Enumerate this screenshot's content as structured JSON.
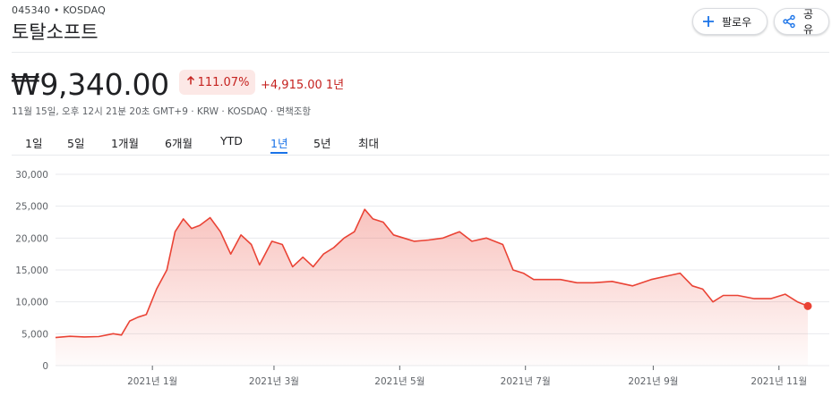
{
  "header": {
    "ticker": "045340 • KOSDAQ",
    "name": "토탈소프트",
    "follow_label": "팔로우",
    "share_label": "공유"
  },
  "quote": {
    "price": "₩9,340.00",
    "change_pct": "111.07%",
    "change_abs": "+4,915.00 1년",
    "meta": "11월 15일, 오후 12시 21분 20초 GMT+9 · KRW · KOSDAQ · 면책조항"
  },
  "ranges": [
    "1일",
    "5일",
    "1개월",
    "6개월",
    "YTD",
    "1년",
    "5년",
    "최대"
  ],
  "active_range": "1년",
  "colors": {
    "line": "#ea4335",
    "chip_bg": "#fce8e6",
    "down_text": "#c5221f",
    "active_tab": "#1a73e8"
  },
  "icons": {
    "follow": "plus-icon",
    "share": "share-icon",
    "chip": "arrow-up-icon"
  },
  "chart_data": {
    "type": "area",
    "ylim": [
      0,
      30000
    ],
    "y_ticks": [
      "0",
      "5,000",
      "10,000",
      "15,000",
      "20,000",
      "25,000",
      "30,000"
    ],
    "x_ticks": [
      {
        "label": "2021년 1월",
        "date": "2021-01-01"
      },
      {
        "label": "2021년 3월",
        "date": "2021-03-01"
      },
      {
        "label": "2021년 5월",
        "date": "2021-05-01"
      },
      {
        "label": "2021년 7월",
        "date": "2021-07-01"
      },
      {
        "label": "2021년 9월",
        "date": "2021-09-01"
      },
      {
        "label": "2021년 11월",
        "date": "2021-11-01"
      }
    ],
    "x_range": [
      "2020-11-15",
      "2021-11-15"
    ],
    "series": [
      {
        "x": [
          "2020-11-15",
          "2020-11-22",
          "2020-11-29",
          "2020-12-06",
          "2020-12-13",
          "2020-12-17",
          "2020-12-21",
          "2020-12-25",
          "2020-12-29",
          "2021-01-03",
          "2021-01-08",
          "2021-01-12",
          "2021-01-16",
          "2021-01-20",
          "2021-01-24",
          "2021-01-29",
          "2021-02-03",
          "2021-02-08",
          "2021-02-13",
          "2021-02-18",
          "2021-02-22",
          "2021-02-28",
          "2021-03-05",
          "2021-03-10",
          "2021-03-15",
          "2021-03-20",
          "2021-03-25",
          "2021-03-30",
          "2021-04-04",
          "2021-04-09",
          "2021-04-14",
          "2021-04-18",
          "2021-04-23",
          "2021-04-28",
          "2021-05-03",
          "2021-05-08",
          "2021-05-15",
          "2021-05-22",
          "2021-05-30",
          "2021-06-05",
          "2021-06-12",
          "2021-06-20",
          "2021-06-25",
          "2021-06-30",
          "2021-07-05",
          "2021-07-10",
          "2021-07-18",
          "2021-07-26",
          "2021-08-03",
          "2021-08-12",
          "2021-08-22",
          "2021-08-31",
          "2021-09-07",
          "2021-09-14",
          "2021-09-20",
          "2021-09-25",
          "2021-09-30",
          "2021-10-05",
          "2021-10-12",
          "2021-10-20",
          "2021-10-28",
          "2021-11-04",
          "2021-11-10",
          "2021-11-15"
        ],
        "values": [
          4400,
          4600,
          4500,
          4550,
          5000,
          4800,
          7000,
          7600,
          8000,
          12000,
          15000,
          21000,
          23000,
          21500,
          22000,
          23200,
          21000,
          17500,
          20500,
          19000,
          15800,
          19500,
          19000,
          15500,
          17000,
          15500,
          17500,
          18500,
          20000,
          21000,
          24500,
          23000,
          22500,
          20500,
          20000,
          19500,
          19700,
          20000,
          21000,
          19500,
          20000,
          19000,
          15000,
          14500,
          13500,
          13500,
          13500,
          13000,
          13000,
          13200,
          12500,
          13500,
          14000,
          14500,
          12500,
          12000,
          10000,
          11000,
          11000,
          10500,
          10500,
          11200,
          10000,
          9340
        ]
      }
    ]
  }
}
